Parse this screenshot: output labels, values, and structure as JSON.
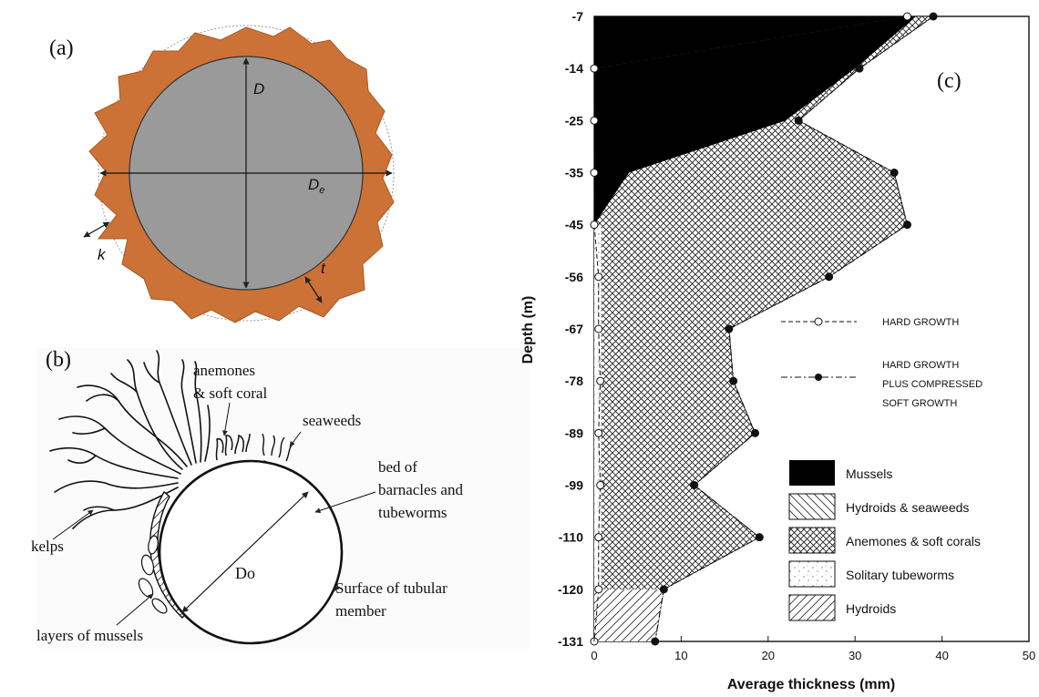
{
  "panel_a": {
    "label": "(a)",
    "dim_D": "D",
    "dim_De": "D",
    "dim_De_sub": "e",
    "dim_k": "k",
    "dim_t": "t",
    "colors": {
      "pipe": "#9a9a9a",
      "fouling": "#cc7236"
    }
  },
  "panel_b": {
    "label": "(b)",
    "anemones": [
      "anemones",
      "& soft coral"
    ],
    "seaweeds": "seaweeds",
    "barnacles": [
      "bed of",
      "barnacles and",
      "tubeworms"
    ],
    "kelps": "kelps",
    "diameter": "Do",
    "surface": [
      "Surface of tubular",
      "member"
    ],
    "mussels": "layers of mussels"
  },
  "panel_c": {
    "label": "(c)",
    "legend_lines": {
      "hard": "HARD GROWTH",
      "hard_plus": [
        "HARD GROWTH",
        "PLUS COMPRESSED",
        "SOFT GROWTH"
      ]
    },
    "legend_areas": [
      "Mussels",
      "Hydroids & seaweeds",
      "Anemones & soft corals",
      "Solitary tubeworms",
      "Hydroids"
    ]
  },
  "chart_data": {
    "type": "area",
    "xlabel": "Average thickness (mm)",
    "ylabel": "Depth (m)",
    "xlim": [
      0,
      50
    ],
    "x_ticks": [
      "0",
      "10",
      "20",
      "30",
      "40",
      "50"
    ],
    "y_ticks": [
      "-7",
      "-14",
      "-25",
      "-35",
      "-45",
      "-56",
      "-67",
      "-78",
      "-89",
      "-99",
      "-110",
      "-120",
      "-131"
    ],
    "depths": [
      -7,
      -14,
      -25,
      -35,
      -45,
      -56,
      -67,
      -78,
      -89,
      -99,
      -110,
      -120,
      -131
    ],
    "series": [
      {
        "name": "HARD GROWTH",
        "values": [
          36,
          0,
          0,
          0,
          0,
          0.5,
          0.5,
          0.7,
          0.5,
          0.7,
          0.5,
          0.5,
          0
        ]
      },
      {
        "name": "HARD GROWTH PLUS COMPRESSED SOFT GROWTH",
        "values": [
          39,
          30.5,
          23.5,
          34.5,
          36,
          27,
          15.5,
          16,
          18.5,
          11.5,
          19,
          8,
          7
        ]
      }
    ],
    "mussels_boundary": [
      37,
      30,
      22,
      4,
      0
    ],
    "hydroids_top_depth": -120
  }
}
